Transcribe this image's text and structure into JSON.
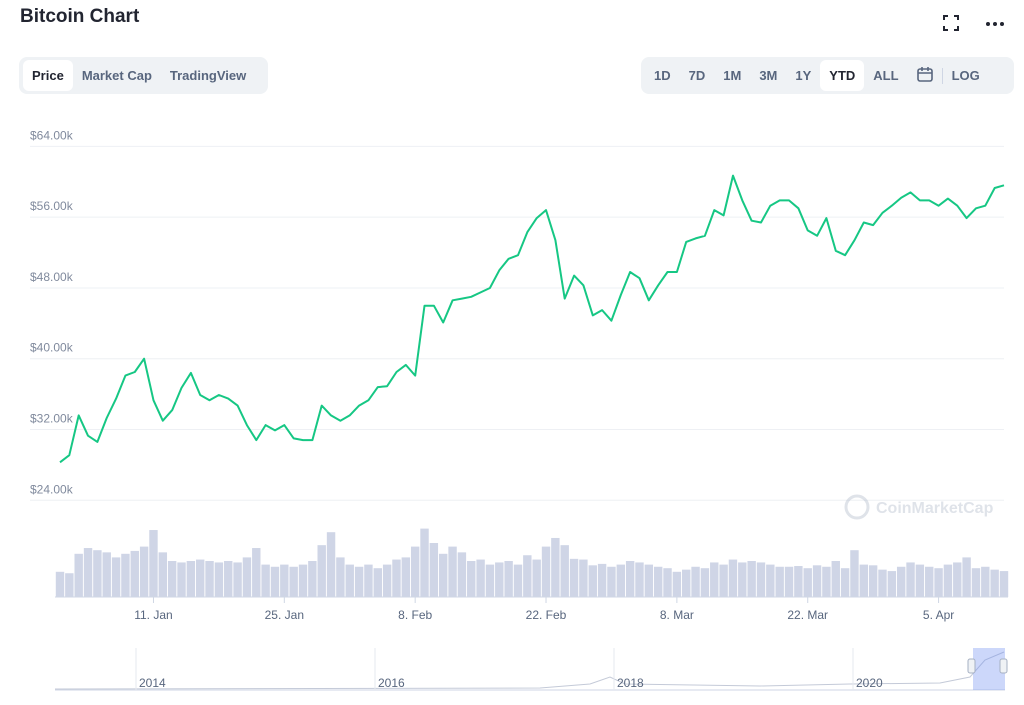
{
  "header": {
    "title": "Bitcoin Chart",
    "tabs": [
      "Price",
      "Market Cap",
      "TradingView"
    ],
    "ranges": [
      "1D",
      "7D",
      "1M",
      "3M",
      "1Y",
      "YTD",
      "ALL"
    ],
    "log": "LOG"
  },
  "chart_data": {
    "type": "line",
    "categories": [
      null,
      null,
      null,
      null,
      null,
      null,
      null,
      null,
      null,
      null,
      "11. Jan",
      null,
      null,
      null,
      null,
      null,
      null,
      null,
      null,
      null,
      null,
      null,
      null,
      null,
      "25. Jan",
      null,
      null,
      null,
      null,
      null,
      null,
      null,
      null,
      null,
      null,
      null,
      null,
      null,
      "8. Feb",
      null,
      null,
      null,
      null,
      null,
      null,
      null,
      null,
      null,
      null,
      null,
      null,
      null,
      "22. Feb",
      null,
      null,
      null,
      null,
      null,
      null,
      null,
      null,
      null,
      null,
      null,
      null,
      null,
      "8. Mar",
      null,
      null,
      null,
      null,
      null,
      null,
      null,
      null,
      null,
      null,
      null,
      null,
      null,
      "22. Mar",
      null,
      null,
      null,
      null,
      null,
      null,
      null,
      null,
      null,
      null,
      null,
      null,
      null,
      "5. Apr",
      null,
      null,
      null,
      null,
      null,
      null,
      null
    ],
    "series": [
      {
        "color": "#16c784",
        "values": [
          28300,
          29100,
          33600,
          31300,
          30600,
          33300,
          35500,
          38100,
          38500,
          40000,
          35300,
          33000,
          34200,
          36700,
          38400,
          35900,
          35300,
          35900,
          35500,
          34700,
          32500,
          30800,
          32500,
          31900,
          32500,
          31000,
          30800,
          30800,
          34700,
          33600,
          33000,
          33600,
          34700,
          35300,
          36800,
          36900,
          38500,
          39300,
          38100,
          46000,
          46000,
          44100,
          46600,
          46800,
          47000,
          47500,
          48000,
          50000,
          51300,
          51700,
          54300,
          55900,
          56800,
          53400,
          46800,
          49400,
          48300,
          44900,
          45500,
          44300,
          47200,
          49800,
          49100,
          46600,
          48300,
          49800,
          49800,
          53200,
          53600,
          53900,
          56800,
          56200,
          60700,
          57900,
          55600,
          55400,
          57300,
          57900,
          57900,
          57000,
          54500,
          53900,
          55900,
          52200,
          51700,
          53400,
          55400,
          55100,
          56500,
          57300,
          58200,
          58800,
          57900,
          57900,
          57300,
          58100,
          57300,
          55900,
          57000,
          57300,
          59300,
          59600
        ]
      }
    ],
    "volume": {
      "color": "#cfd5e6",
      "ylim": [
        0,
        100
      ],
      "values": [
        35,
        33,
        60,
        68,
        65,
        62,
        55,
        60,
        64,
        70,
        93,
        62,
        50,
        48,
        50,
        52,
        50,
        48,
        50,
        48,
        55,
        68,
        45,
        42,
        45,
        42,
        45,
        50,
        72,
        90,
        55,
        45,
        42,
        45,
        40,
        45,
        52,
        55,
        70,
        95,
        75,
        60,
        70,
        62,
        50,
        52,
        45,
        48,
        50,
        45,
        58,
        52,
        70,
        82,
        72,
        53,
        52,
        44,
        46,
        42,
        45,
        50,
        48,
        45,
        42,
        40,
        35,
        38,
        42,
        40,
        48,
        45,
        52,
        48,
        50,
        48,
        45,
        42,
        42,
        43,
        40,
        44,
        42,
        50,
        40,
        65,
        45,
        44,
        38,
        36,
        42,
        48,
        45,
        42,
        40,
        45,
        48,
        55,
        40,
        42,
        38,
        36
      ]
    },
    "ylim": [
      22000,
      68000
    ],
    "yticks": [
      {
        "value": 24000,
        "label": "$24.00k"
      },
      {
        "value": 32000,
        "label": "$32.00k"
      },
      {
        "value": 40000,
        "label": "$40.00k"
      },
      {
        "value": 48000,
        "label": "$48.00k"
      },
      {
        "value": 56000,
        "label": "$56.00k"
      },
      {
        "value": 64000,
        "label": "$64.00k"
      }
    ],
    "grid": true,
    "watermark": "CoinMarketCap"
  },
  "navigator": {
    "labels": [
      "2014",
      "2016",
      "2018",
      "2020"
    ]
  }
}
